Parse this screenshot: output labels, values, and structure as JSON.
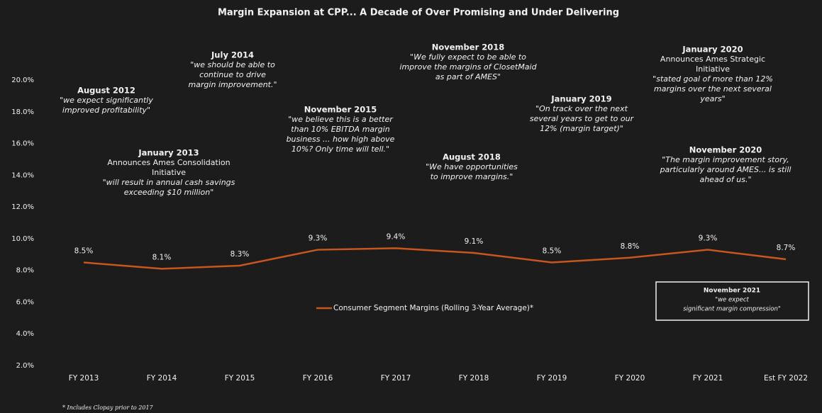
{
  "chart_data": {
    "type": "line",
    "title": "Margin Expansion at CPP... A Decade of Over Promising and Under Delivering",
    "categories": [
      "FY 2013",
      "FY 2014",
      "FY 2015",
      "FY 2016",
      "FY 2017",
      "FY 2018",
      "FY 2019",
      "FY 2020",
      "FY 2021",
      "Est FY 2022"
    ],
    "series": [
      {
        "name": "Consumer Segment Margins (Rolling 3-Year Average)*",
        "color": "#c8561e",
        "values": [
          8.5,
          8.1,
          8.3,
          9.3,
          9.4,
          9.1,
          8.5,
          8.8,
          9.3,
          8.7
        ],
        "value_labels": [
          "8.5%",
          "8.1%",
          "8.3%",
          "9.3%",
          "9.4%",
          "9.1%",
          "8.5%",
          "8.8%",
          "9.3%",
          "8.7%"
        ]
      }
    ],
    "ylim": [
      2,
      20
    ],
    "yticks": [
      {
        "value": 2,
        "label": "2.0%"
      },
      {
        "value": 4,
        "label": "4.0%"
      },
      {
        "value": 6,
        "label": "6.0%"
      },
      {
        "value": 8,
        "label": "8.0%"
      },
      {
        "value": 10,
        "label": "10.0%"
      },
      {
        "value": 12,
        "label": "12.0%"
      },
      {
        "value": 14,
        "label": "14.0%"
      },
      {
        "value": 16,
        "label": "16.0%"
      },
      {
        "value": 18,
        "label": "18.0%"
      },
      {
        "value": 20,
        "label": "20.0%"
      }
    ],
    "annotations": [
      {
        "title": "August 2012",
        "lines": [
          "\"we expect significantly",
          "improved profitability\""
        ]
      },
      {
        "title": "July 2014",
        "lines": [
          "\"we should be able to",
          "continue to drive",
          "margin improvement.\""
        ]
      },
      {
        "title": "January 2013",
        "lines": [
          "Announces Ames Consolidation",
          "Initiative",
          "\"will result in annual cash savings",
          "exceeding $10 million\""
        ]
      },
      {
        "title": "November 2015",
        "lines": [
          "\"we believe this is a better",
          "than 10% EBITDA margin",
          "business ... how high above",
          "10%? Only time will tell.\""
        ]
      },
      {
        "title": "November 2018",
        "lines": [
          "\"We fully expect to be able to",
          "improve the margins of ClosetMaid",
          "as part of AMES\""
        ]
      },
      {
        "title": "August 2018",
        "lines": [
          "\"We have opportunities",
          "to improve margins.\""
        ]
      },
      {
        "title": "January 2019",
        "lines": [
          "\"On track over the next",
          "several years to get to our",
          "12% (margin target)\""
        ]
      },
      {
        "title": "January 2020",
        "lines": [
          "Announces Ames Strategic",
          "Initiative",
          "\"stated goal of more than 12%",
          "margins over the next several",
          "years\""
        ]
      },
      {
        "title": "November 2020",
        "lines": [
          "\"The margin improvement story,",
          "particularly around AMES... is still",
          "ahead of us.\""
        ]
      }
    ],
    "callout": {
      "title": "November 2021",
      "lines": [
        "\"we expect",
        "significant margin compression\""
      ]
    },
    "footnote": "* Includes Clopay prior to 2017"
  }
}
